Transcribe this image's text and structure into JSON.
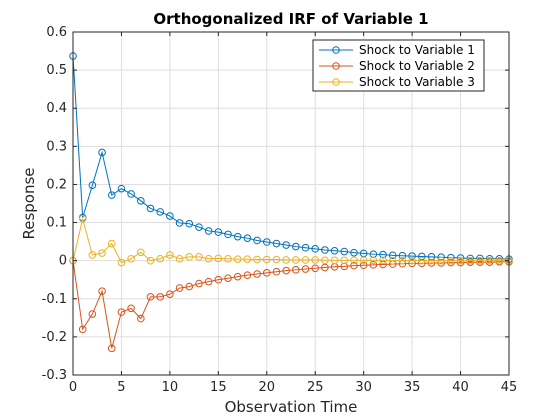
{
  "chart_data": {
    "type": "line",
    "title": "Orthogonalized IRF of Variable 1",
    "xlabel": "Observation Time",
    "ylabel": "Response",
    "xlim": [
      0,
      45
    ],
    "ylim": [
      -0.3,
      0.6
    ],
    "xticks": [
      0,
      5,
      10,
      15,
      20,
      25,
      30,
      35,
      40,
      45
    ],
    "yticks": [
      -0.3,
      -0.2,
      -0.1,
      0,
      0.1,
      0.2,
      0.3,
      0.4,
      0.5,
      0.6
    ],
    "grid": true,
    "legend_position": "top-right",
    "marker": "circle",
    "x": [
      0,
      1,
      2,
      3,
      4,
      5,
      6,
      7,
      8,
      9,
      10,
      11,
      12,
      13,
      14,
      15,
      16,
      17,
      18,
      19,
      20,
      21,
      22,
      23,
      24,
      25,
      26,
      27,
      28,
      29,
      30,
      31,
      32,
      33,
      34,
      35,
      36,
      37,
      38,
      39,
      40,
      41,
      42,
      43,
      44,
      45
    ],
    "series": [
      {
        "name": "Shock to Variable 1",
        "color": "#0072BD",
        "values": [
          0.537,
          0.113,
          0.198,
          0.284,
          0.172,
          0.189,
          0.175,
          0.157,
          0.137,
          0.128,
          0.117,
          0.099,
          0.097,
          0.088,
          0.078,
          0.075,
          0.069,
          0.063,
          0.059,
          0.053,
          0.049,
          0.045,
          0.041,
          0.037,
          0.034,
          0.031,
          0.028,
          0.026,
          0.024,
          0.021,
          0.019,
          0.017,
          0.016,
          0.014,
          0.013,
          0.012,
          0.011,
          0.01,
          0.009,
          0.008,
          0.007,
          0.006,
          0.006,
          0.005,
          0.005,
          0.004
        ]
      },
      {
        "name": "Shock to Variable 2",
        "color": "#D95319",
        "values": [
          0.0,
          -0.18,
          -0.14,
          -0.08,
          -0.23,
          -0.135,
          -0.125,
          -0.152,
          -0.095,
          -0.095,
          -0.088,
          -0.072,
          -0.068,
          -0.06,
          -0.055,
          -0.05,
          -0.046,
          -0.042,
          -0.038,
          -0.035,
          -0.032,
          -0.029,
          -0.026,
          -0.024,
          -0.022,
          -0.02,
          -0.018,
          -0.016,
          -0.015,
          -0.013,
          -0.012,
          -0.011,
          -0.01,
          -0.009,
          -0.008,
          -0.007,
          -0.007,
          -0.006,
          -0.006,
          -0.005,
          -0.005,
          -0.004,
          -0.004,
          -0.004,
          -0.003,
          -0.003
        ]
      },
      {
        "name": "Shock to Variable 3",
        "color": "#EDB120",
        "values": [
          0.0,
          0.11,
          0.015,
          0.02,
          0.045,
          -0.005,
          0.005,
          0.022,
          0.0,
          0.005,
          0.015,
          0.005,
          0.01,
          0.01,
          0.005,
          0.006,
          0.005,
          0.004,
          0.004,
          0.003,
          0.003,
          0.003,
          0.002,
          0.002,
          0.002,
          0.002,
          0.001,
          0.001,
          0.001,
          0.001,
          0.001,
          0.001,
          0.001,
          0.0,
          0.0,
          0.0,
          0.0,
          0.0,
          0.0,
          0.0,
          0.0,
          0.0,
          0.0,
          0.0,
          0.0,
          0.0
        ]
      }
    ]
  }
}
